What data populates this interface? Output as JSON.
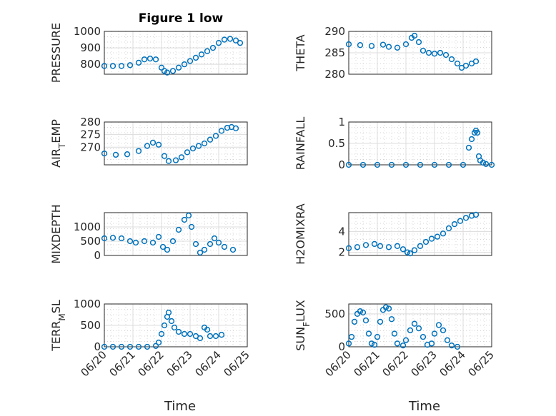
{
  "figure": {
    "title": "Figure 1 low",
    "xlabel": "Time",
    "marker_color": "#0072BD"
  },
  "chart_data": [
    {
      "type": "scatter",
      "id": "pressure",
      "ylabel": "PRESSURE",
      "xlim": [
        "06/20",
        "06/24"
      ],
      "ylim": [
        740,
        1000
      ],
      "yticks": [
        800,
        900,
        1000
      ],
      "xticks": [
        "06/20",
        "06/21",
        "06/22",
        "06/23",
        "06/24",
        "06/25"
      ],
      "show_xticklabels": false,
      "title": "Figure 1 low",
      "points": [
        [
          0,
          790
        ],
        [
          0.3,
          790
        ],
        [
          0.6,
          790
        ],
        [
          0.9,
          795
        ],
        [
          1.2,
          810
        ],
        [
          1.4,
          830
        ],
        [
          1.6,
          835
        ],
        [
          1.8,
          830
        ],
        [
          2.0,
          780
        ],
        [
          2.1,
          760
        ],
        [
          2.2,
          750
        ],
        [
          2.4,
          760
        ],
        [
          2.6,
          780
        ],
        [
          2.8,
          800
        ],
        [
          3.0,
          820
        ],
        [
          3.2,
          840
        ],
        [
          3.4,
          860
        ],
        [
          3.6,
          880
        ],
        [
          3.8,
          900
        ],
        [
          4.0,
          930
        ],
        [
          4.2,
          950
        ],
        [
          4.4,
          955
        ],
        [
          4.6,
          945
        ],
        [
          4.75,
          930
        ]
      ]
    },
    {
      "type": "scatter",
      "id": "theta",
      "ylabel": "THETA",
      "xlim": [
        "06/20",
        "06/24"
      ],
      "ylim": [
        280,
        290
      ],
      "yticks": [
        280,
        285,
        290
      ],
      "show_xticklabels": false,
      "points": [
        [
          0,
          287
        ],
        [
          0.4,
          286.8
        ],
        [
          0.8,
          286.6
        ],
        [
          1.2,
          286.9
        ],
        [
          1.4,
          286.4
        ],
        [
          1.7,
          286.2
        ],
        [
          2.0,
          287
        ],
        [
          2.2,
          288.5
        ],
        [
          2.3,
          289
        ],
        [
          2.45,
          287.5
        ],
        [
          2.6,
          285.5
        ],
        [
          2.8,
          285
        ],
        [
          3.0,
          284.8
        ],
        [
          3.2,
          285
        ],
        [
          3.4,
          284.5
        ],
        [
          3.6,
          283.5
        ],
        [
          3.8,
          282.5
        ],
        [
          3.95,
          281.5
        ],
        [
          4.1,
          282
        ],
        [
          4.3,
          282.5
        ],
        [
          4.45,
          283
        ]
      ]
    },
    {
      "type": "scatter",
      "id": "air_temp",
      "ylabel": "AIR_TEMP",
      "xlim": [
        "06/20",
        "06/24"
      ],
      "ylim": [
        263,
        280
      ],
      "yticks": [
        270,
        275,
        280
      ],
      "show_xticklabels": false,
      "points": [
        [
          0,
          267.5
        ],
        [
          0.4,
          267
        ],
        [
          0.8,
          267.2
        ],
        [
          1.2,
          268.5
        ],
        [
          1.5,
          270.5
        ],
        [
          1.7,
          271.8
        ],
        [
          1.9,
          271
        ],
        [
          2.1,
          266.5
        ],
        [
          2.25,
          264.5
        ],
        [
          2.5,
          264.8
        ],
        [
          2.7,
          266
        ],
        [
          2.9,
          268
        ],
        [
          3.1,
          269.5
        ],
        [
          3.3,
          270.5
        ],
        [
          3.5,
          271.5
        ],
        [
          3.7,
          273
        ],
        [
          3.9,
          274.5
        ],
        [
          4.1,
          276.5
        ],
        [
          4.3,
          277.7
        ],
        [
          4.45,
          278
        ],
        [
          4.6,
          277.5
        ]
      ]
    },
    {
      "type": "scatter",
      "id": "rainfall",
      "ylabel": "RAINFALL",
      "xlim": [
        "06/20",
        "06/24"
      ],
      "ylim": [
        0,
        1
      ],
      "yticks": [
        0,
        0.5,
        1
      ],
      "show_xticklabels": false,
      "points": [
        [
          0,
          0
        ],
        [
          0.5,
          0
        ],
        [
          1,
          0
        ],
        [
          1.5,
          0
        ],
        [
          2,
          0
        ],
        [
          2.5,
          0
        ],
        [
          3,
          0
        ],
        [
          3.5,
          0
        ],
        [
          4.0,
          0
        ],
        [
          4.2,
          0.4
        ],
        [
          4.3,
          0.6
        ],
        [
          4.4,
          0.75
        ],
        [
          4.45,
          0.8
        ],
        [
          4.5,
          0.75
        ],
        [
          4.55,
          0.2
        ],
        [
          4.6,
          0.1
        ],
        [
          4.7,
          0.05
        ],
        [
          4.8,
          0.02
        ],
        [
          5.0,
          0
        ]
      ]
    },
    {
      "type": "scatter",
      "id": "mixdepth",
      "ylabel": "MIXDEPTH",
      "xlim": [
        "06/20",
        "06/24"
      ],
      "ylim": [
        0,
        1500
      ],
      "yticks": [
        0,
        500,
        1000
      ],
      "show_xticklabels": false,
      "points": [
        [
          0,
          600
        ],
        [
          0.3,
          620
        ],
        [
          0.6,
          600
        ],
        [
          0.9,
          500
        ],
        [
          1.1,
          450
        ],
        [
          1.4,
          500
        ],
        [
          1.7,
          450
        ],
        [
          1.9,
          650
        ],
        [
          2.05,
          300
        ],
        [
          2.2,
          200
        ],
        [
          2.4,
          500
        ],
        [
          2.6,
          900
        ],
        [
          2.8,
          1250
        ],
        [
          2.95,
          1400
        ],
        [
          3.05,
          1000
        ],
        [
          3.2,
          400
        ],
        [
          3.35,
          100
        ],
        [
          3.5,
          200
        ],
        [
          3.7,
          400
        ],
        [
          3.85,
          600
        ],
        [
          4.0,
          450
        ],
        [
          4.2,
          300
        ],
        [
          4.5,
          200
        ]
      ]
    },
    {
      "type": "scatter",
      "id": "h2omixra",
      "ylabel": "H2OMIXRA",
      "xlim": [
        "06/20",
        "06/24"
      ],
      "ylim": [
        1.7,
        5.8
      ],
      "yticks": [
        2,
        4
      ],
      "show_xticklabels": false,
      "points": [
        [
          0,
          2.4
        ],
        [
          0.3,
          2.5
        ],
        [
          0.6,
          2.7
        ],
        [
          0.9,
          2.8
        ],
        [
          1.1,
          2.6
        ],
        [
          1.4,
          2.5
        ],
        [
          1.7,
          2.6
        ],
        [
          1.9,
          2.3
        ],
        [
          2.05,
          2.0
        ],
        [
          2.15,
          1.9
        ],
        [
          2.3,
          2.2
        ],
        [
          2.5,
          2.6
        ],
        [
          2.7,
          3.0
        ],
        [
          2.9,
          3.3
        ],
        [
          3.1,
          3.5
        ],
        [
          3.3,
          3.8
        ],
        [
          3.5,
          4.3
        ],
        [
          3.7,
          4.7
        ],
        [
          3.9,
          5.0
        ],
        [
          4.1,
          5.3
        ],
        [
          4.3,
          5.5
        ],
        [
          4.45,
          5.6
        ]
      ]
    },
    {
      "type": "scatter",
      "id": "terr_msl",
      "ylabel": "TERR_MSL",
      "xlim": [
        "06/20",
        "06/25"
      ],
      "ylim": [
        0,
        1000
      ],
      "yticks": [
        0,
        500,
        1000
      ],
      "xticks": [
        "06/20",
        "06/21",
        "06/22",
        "06/23",
        "06/24",
        "06/25"
      ],
      "show_xticklabels": true,
      "points": [
        [
          0,
          0
        ],
        [
          0.3,
          0
        ],
        [
          0.6,
          0
        ],
        [
          0.9,
          0
        ],
        [
          1.2,
          0
        ],
        [
          1.5,
          0
        ],
        [
          1.8,
          20
        ],
        [
          1.9,
          100
        ],
        [
          2.0,
          300
        ],
        [
          2.1,
          500
        ],
        [
          2.2,
          700
        ],
        [
          2.25,
          800
        ],
        [
          2.35,
          600
        ],
        [
          2.45,
          450
        ],
        [
          2.6,
          350
        ],
        [
          2.8,
          300
        ],
        [
          3.0,
          300
        ],
        [
          3.2,
          250
        ],
        [
          3.35,
          200
        ],
        [
          3.5,
          450
        ],
        [
          3.6,
          400
        ],
        [
          3.7,
          250
        ],
        [
          3.9,
          250
        ],
        [
          4.1,
          280
        ]
      ]
    },
    {
      "type": "scatter",
      "id": "sun_flux",
      "ylabel": "SUN_FLUX",
      "xlim": [
        "06/20",
        "06/25"
      ],
      "ylim": [
        0,
        650
      ],
      "yticks": [
        0,
        500
      ],
      "xticks": [
        "06/20",
        "06/21",
        "06/22",
        "06/23",
        "06/24",
        "06/25"
      ],
      "show_xticklabels": true,
      "points": [
        [
          0,
          50
        ],
        [
          0.1,
          150
        ],
        [
          0.2,
          380
        ],
        [
          0.3,
          500
        ],
        [
          0.4,
          540
        ],
        [
          0.5,
          520
        ],
        [
          0.6,
          400
        ],
        [
          0.7,
          200
        ],
        [
          0.8,
          50
        ],
        [
          0.9,
          30
        ],
        [
          1.0,
          150
        ],
        [
          1.1,
          380
        ],
        [
          1.2,
          560
        ],
        [
          1.3,
          600
        ],
        [
          1.4,
          580
        ],
        [
          1.5,
          420
        ],
        [
          1.6,
          200
        ],
        [
          1.7,
          50
        ],
        [
          1.9,
          20
        ],
        [
          2.0,
          100
        ],
        [
          2.15,
          250
        ],
        [
          2.3,
          350
        ],
        [
          2.45,
          280
        ],
        [
          2.6,
          150
        ],
        [
          2.75,
          30
        ],
        [
          2.9,
          50
        ],
        [
          3.0,
          200
        ],
        [
          3.15,
          330
        ],
        [
          3.3,
          250
        ],
        [
          3.45,
          100
        ],
        [
          3.6,
          20
        ],
        [
          3.8,
          0
        ]
      ]
    }
  ]
}
